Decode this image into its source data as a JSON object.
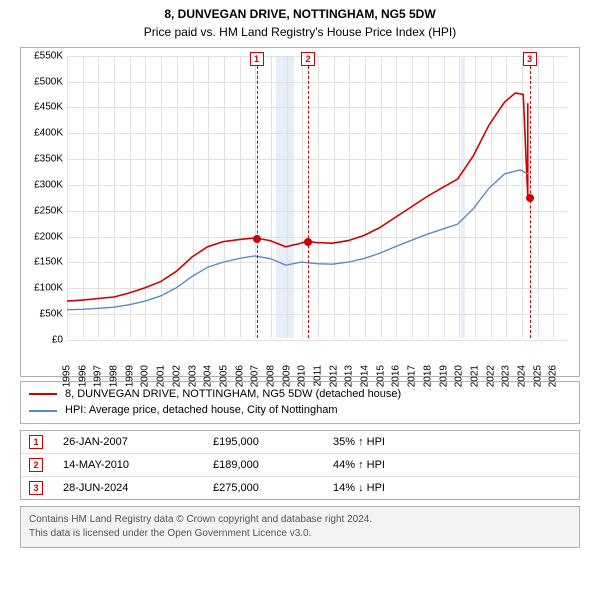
{
  "title_line1": "8, DUNVEGAN DRIVE, NOTTINGHAM, NG5 5DW",
  "title_line2": "Price paid vs. HM Land Registry's House Price Index (HPI)",
  "chart": {
    "type": "line",
    "xlim": [
      1995,
      2027
    ],
    "ylim": [
      0,
      550000
    ],
    "ytick_step": 50000,
    "yticks": [
      "£0",
      "£50K",
      "£100K",
      "£150K",
      "£200K",
      "£250K",
      "£300K",
      "£350K",
      "£400K",
      "£450K",
      "£500K",
      "£550K"
    ],
    "xticks": [
      1995,
      1996,
      1997,
      1998,
      1999,
      2000,
      2001,
      2002,
      2003,
      2004,
      2005,
      2006,
      2007,
      2008,
      2009,
      2010,
      2011,
      2012,
      2013,
      2014,
      2015,
      2016,
      2017,
      2018,
      2019,
      2020,
      2021,
      2022,
      2023,
      2024,
      2025,
      2026
    ],
    "recession_bands": [
      {
        "start": 2008.3,
        "end": 2009.5
      },
      {
        "start": 2020.1,
        "end": 2020.4
      }
    ],
    "grid_color": "#e0e0e0",
    "background": "#ffffff",
    "series": [
      {
        "name": "property",
        "label": "8, DUNVEGAN DRIVE, NOTTINGHAM, NG5 5DW (detached house)",
        "color": "#d00000",
        "width": 1.6,
        "points": [
          [
            1995.0,
            72000
          ],
          [
            1996.0,
            74000
          ],
          [
            1997.0,
            77000
          ],
          [
            1998.0,
            80000
          ],
          [
            1999.0,
            88000
          ],
          [
            2000.0,
            98000
          ],
          [
            2001.0,
            110000
          ],
          [
            2002.0,
            130000
          ],
          [
            2003.0,
            158000
          ],
          [
            2004.0,
            178000
          ],
          [
            2005.0,
            188000
          ],
          [
            2006.0,
            192000
          ],
          [
            2007.0,
            195000
          ],
          [
            2007.08,
            195000
          ],
          [
            2008.0,
            190000
          ],
          [
            2009.0,
            178000
          ],
          [
            2010.0,
            185000
          ],
          [
            2010.37,
            189000
          ],
          [
            2011.0,
            186000
          ],
          [
            2012.0,
            185000
          ],
          [
            2013.0,
            190000
          ],
          [
            2014.0,
            200000
          ],
          [
            2015.0,
            215000
          ],
          [
            2016.0,
            235000
          ],
          [
            2017.0,
            255000
          ],
          [
            2018.0,
            275000
          ],
          [
            2019.0,
            293000
          ],
          [
            2020.0,
            310000
          ],
          [
            2021.0,
            355000
          ],
          [
            2022.0,
            415000
          ],
          [
            2023.0,
            460000
          ],
          [
            2023.7,
            478000
          ],
          [
            2024.2,
            475000
          ],
          [
            2024.49,
            275000
          ],
          [
            2024.49,
            458000
          ]
        ]
      },
      {
        "name": "hpi",
        "label": "HPI: Average price, detached house, City of Nottingham",
        "color": "#5b8bc5",
        "width": 1.4,
        "points": [
          [
            1995.0,
            55000
          ],
          [
            1996.0,
            56000
          ],
          [
            1997.0,
            58000
          ],
          [
            1998.0,
            60000
          ],
          [
            1999.0,
            65000
          ],
          [
            2000.0,
            72000
          ],
          [
            2001.0,
            82000
          ],
          [
            2002.0,
            98000
          ],
          [
            2003.0,
            120000
          ],
          [
            2004.0,
            138000
          ],
          [
            2005.0,
            148000
          ],
          [
            2006.0,
            155000
          ],
          [
            2007.0,
            160000
          ],
          [
            2008.0,
            155000
          ],
          [
            2009.0,
            142000
          ],
          [
            2010.0,
            148000
          ],
          [
            2011.0,
            145000
          ],
          [
            2012.0,
            144000
          ],
          [
            2013.0,
            148000
          ],
          [
            2014.0,
            155000
          ],
          [
            2015.0,
            165000
          ],
          [
            2016.0,
            178000
          ],
          [
            2017.0,
            190000
          ],
          [
            2018.0,
            202000
          ],
          [
            2019.0,
            212000
          ],
          [
            2020.0,
            222000
          ],
          [
            2021.0,
            252000
          ],
          [
            2022.0,
            292000
          ],
          [
            2023.0,
            320000
          ],
          [
            2024.0,
            328000
          ],
          [
            2024.5,
            320000
          ]
        ]
      }
    ],
    "event_markers": [
      {
        "n": "1",
        "x": 2007.08,
        "y": 195000
      },
      {
        "n": "2",
        "x": 2010.37,
        "y": 189000
      },
      {
        "n": "3",
        "x": 2024.49,
        "y": 275000
      }
    ]
  },
  "legend": {
    "items": [
      {
        "color": "#d00000",
        "label": "8, DUNVEGAN DRIVE, NOTTINGHAM, NG5 5DW (detached house)"
      },
      {
        "color": "#5b8bc5",
        "label": "HPI: Average price, detached house, City of Nottingham"
      }
    ]
  },
  "sales": [
    {
      "n": "1",
      "date": "26-JAN-2007",
      "price": "£195,000",
      "delta": "35% ↑ HPI"
    },
    {
      "n": "2",
      "date": "14-MAY-2010",
      "price": "£189,000",
      "delta": "44% ↑ HPI"
    },
    {
      "n": "3",
      "date": "28-JUN-2024",
      "price": "£275,000",
      "delta": "14% ↓ HPI"
    }
  ],
  "footer_line1": "Contains HM Land Registry data © Crown copyright and database right 2024.",
  "footer_line2": "This data is licensed under the Open Government Licence v3.0."
}
